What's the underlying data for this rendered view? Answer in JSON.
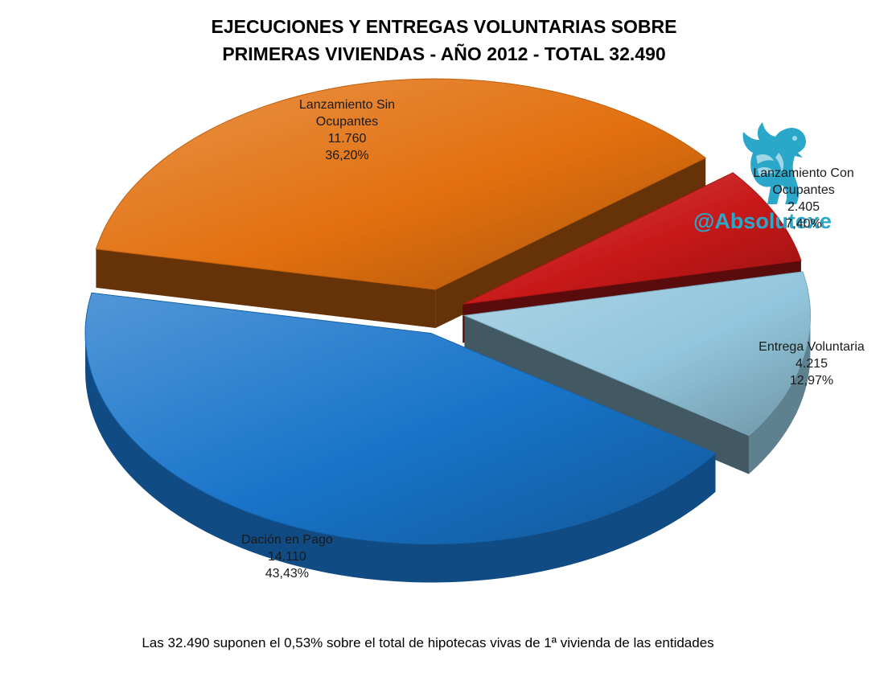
{
  "chart_data": {
    "type": "pie",
    "title_lines": [
      "EJECUCIONES Y ENTREGAS VOLUNTARIAS SOBRE",
      "PRIMERAS VIVIENDAS - AÑO 2012 - TOTAL 32.490"
    ],
    "slices": [
      {
        "label_lines": [
          "Entrega Voluntaria"
        ],
        "value": 4215,
        "value_text": "4.215",
        "percent_text": "12,97%",
        "color": "#92c6dc"
      },
      {
        "label_lines": [
          "Dación en Pago"
        ],
        "value": 14110,
        "value_text": "14.110",
        "percent_text": "43,43%",
        "color": "#1874c9"
      },
      {
        "label_lines": [
          "Lanzamiento Sin",
          "Ocupantes"
        ],
        "value": 11760,
        "value_text": "11.760",
        "percent_text": "36,20%",
        "color": "#e2700f"
      },
      {
        "label_lines": [
          "Lanzamiento Con",
          "Ocupantes"
        ],
        "value": 2405,
        "value_text": "2.405",
        "percent_text": "7,40%",
        "color": "#c81818"
      }
    ],
    "footnote": "Las 32.490 suponen el 0,53% sobre el total de hipotecas vivas de 1ª vivienda de las entidades"
  },
  "watermark": {
    "brand_text": "@Absolutexe",
    "brand_color": "#2aa7c9",
    "icon": "griffin-icon"
  }
}
